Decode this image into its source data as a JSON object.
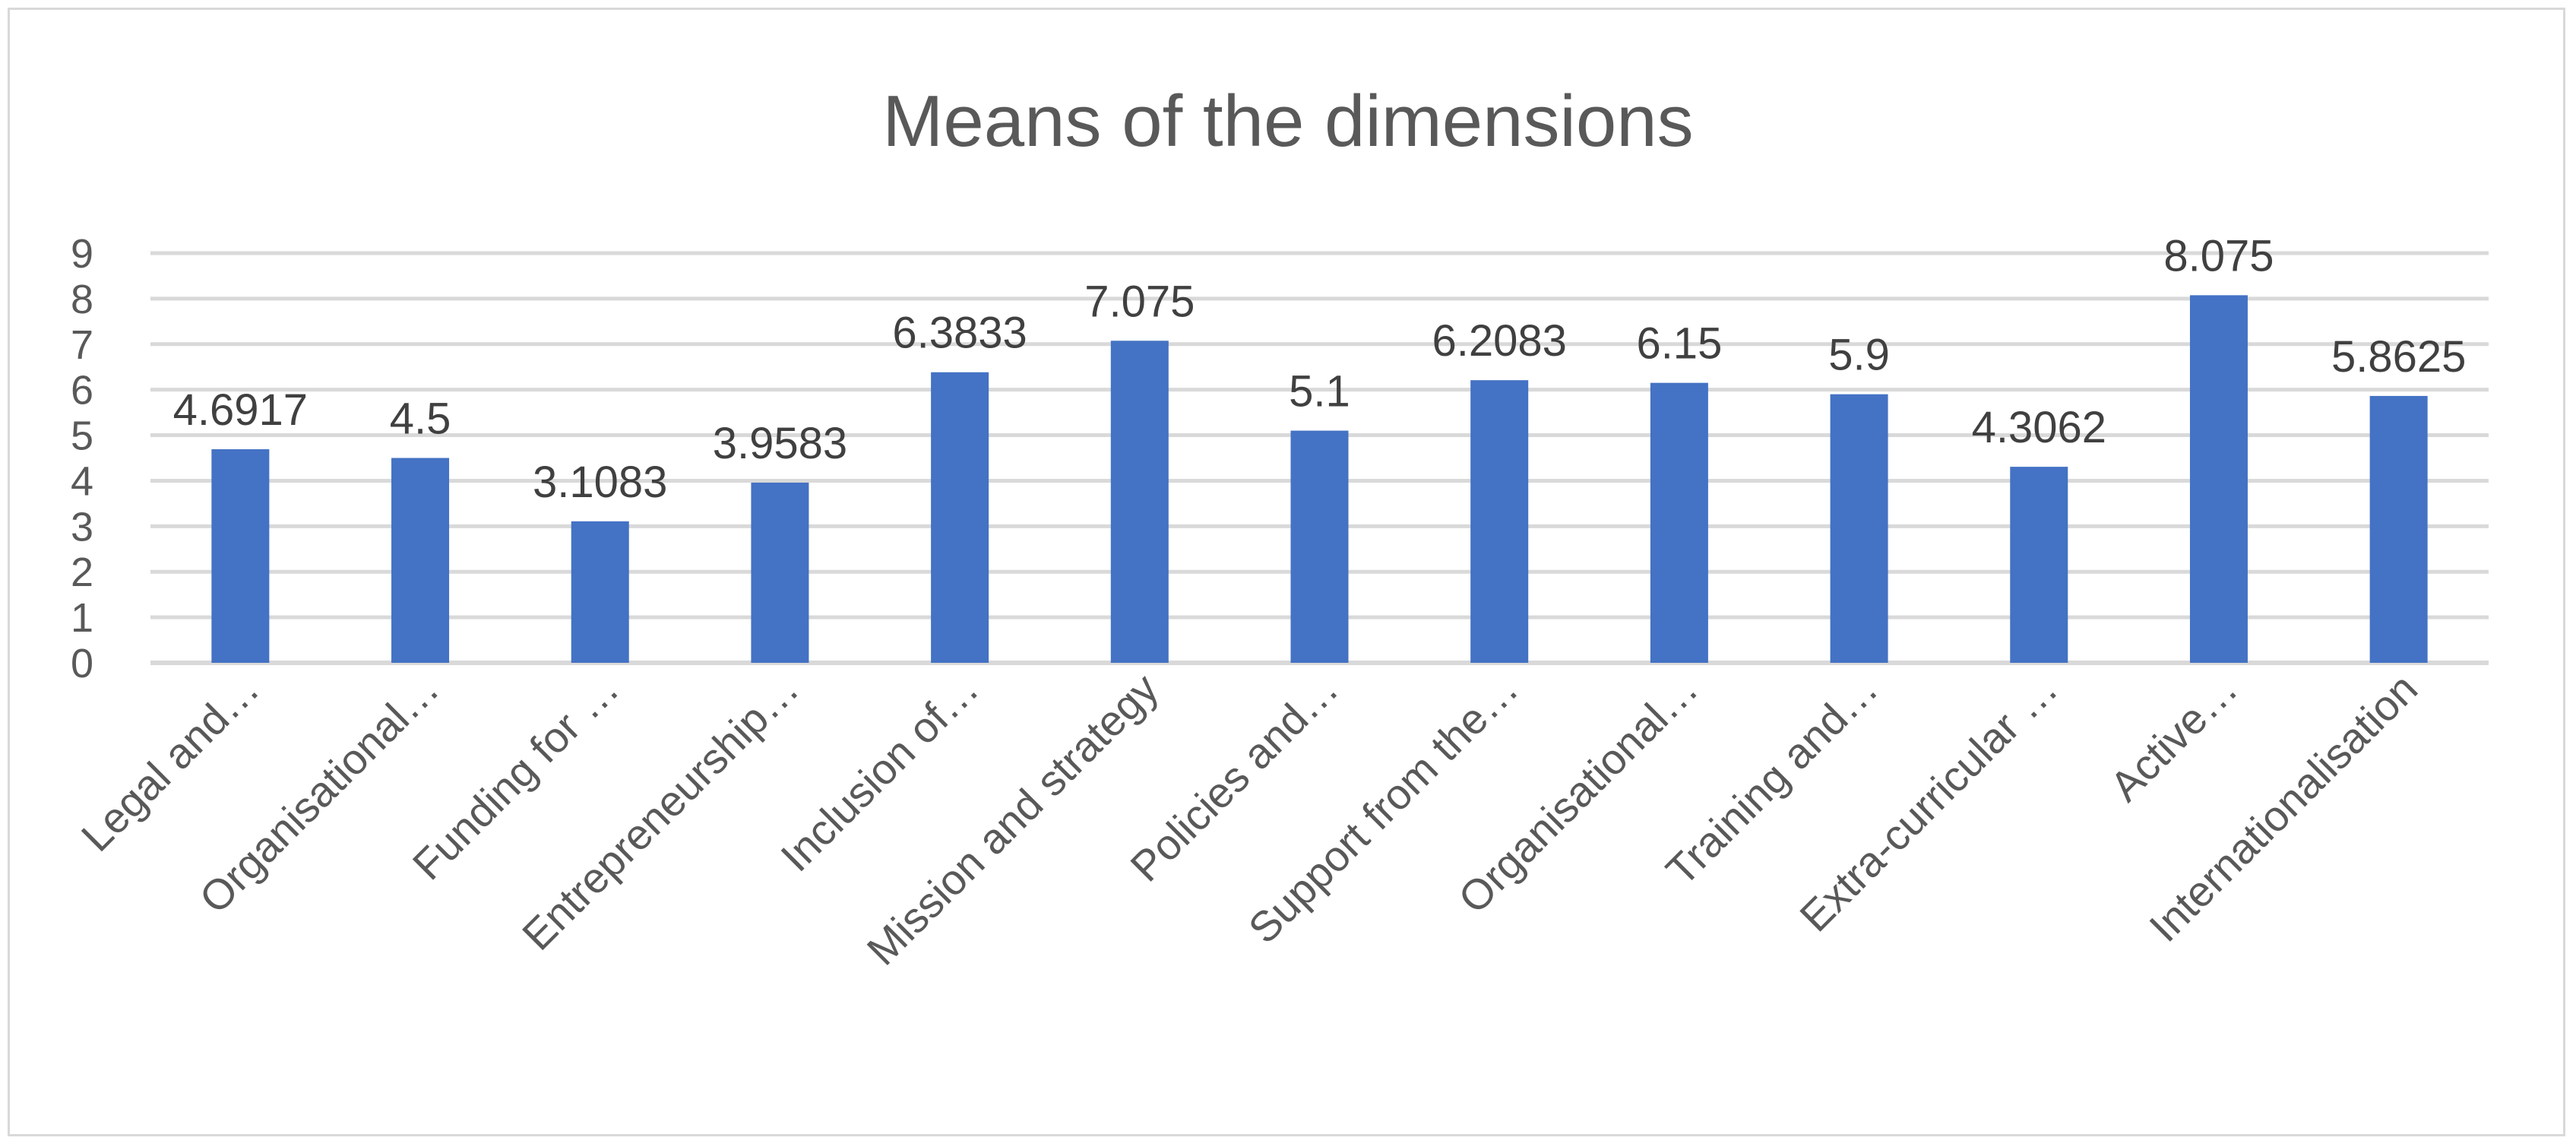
{
  "chart_data": {
    "type": "bar",
    "title": "Means of the dimensions",
    "xlabel": "",
    "ylabel": "",
    "categories": [
      "Legal and…",
      "Organisational…",
      "Funding for …",
      "Entrepreneurship…",
      "Inclusion of…",
      "Mission and strategy",
      "Policies and…",
      "Support from the…",
      "Organisational…",
      "Training and…",
      "Extra-curricular …",
      "Active…",
      "Internationalisation"
    ],
    "values": [
      4.6917,
      4.5,
      3.1083,
      3.9583,
      6.3833,
      7.075,
      5.1,
      6.2083,
      6.15,
      5.9,
      4.3062,
      8.075,
      5.8625
    ],
    "data_labels": [
      "4.6917",
      "4.5",
      "3.1083",
      "3.9583",
      "6.3833",
      "7.075",
      "5.1",
      "6.2083",
      "6.15",
      "5.9",
      "4.3062",
      "8.075",
      "5.8625"
    ],
    "ylim": [
      0,
      9
    ],
    "yticks": [
      0,
      1,
      2,
      3,
      4,
      5,
      6,
      7,
      8,
      9
    ],
    "grid": true,
    "legend": "none",
    "bar_color": "#4472c4"
  }
}
